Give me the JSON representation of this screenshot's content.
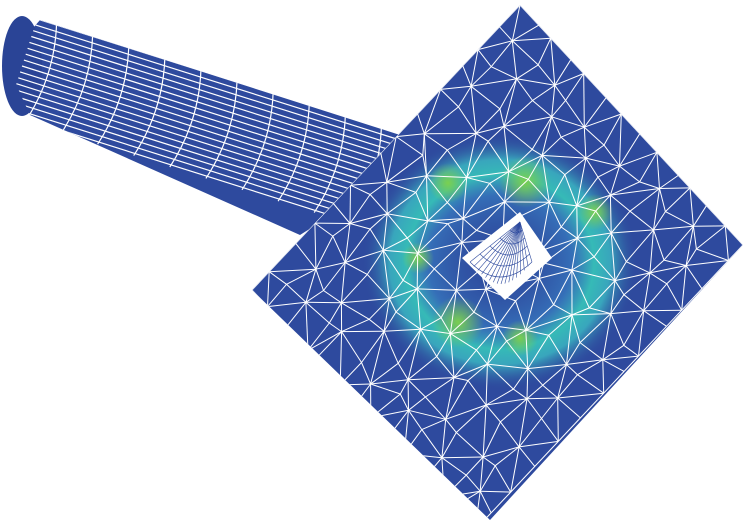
{
  "colors": {
    "background": "#ffffff",
    "base_blue": "#2e4a9e",
    "mesh_line": "#ffffff",
    "stress_low": "#3a86c8",
    "stress_mid": "#36c0b8",
    "stress_high": "#7ed24a"
  },
  "figure": {
    "components": [
      "cylindrical-shaft",
      "square-plate",
      "central-hole"
    ]
  }
}
